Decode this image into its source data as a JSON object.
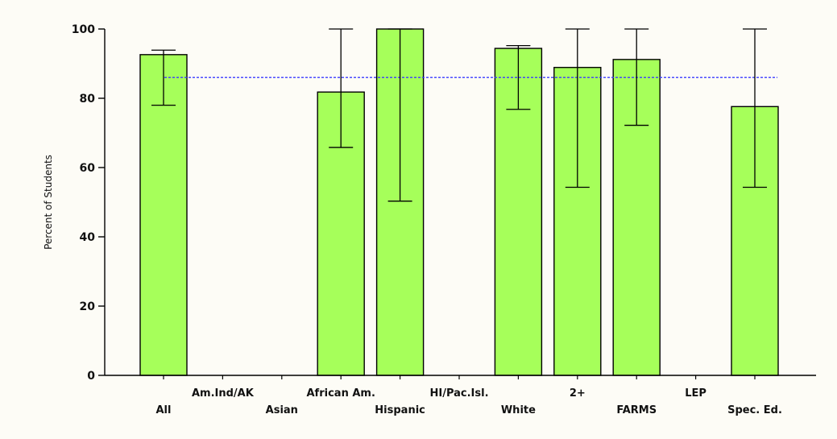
{
  "colors": {
    "background": "#fdfcf6",
    "bar_fill": "#a6ff5a",
    "bar_stroke": "#000000",
    "reference_line": "#3b3bff",
    "axis": "#000000"
  },
  "chart_data": {
    "type": "bar",
    "title": "",
    "xlabel": "",
    "ylabel": "Percent of Students",
    "ylim": [
      0,
      100
    ],
    "yticks": [
      0,
      20,
      40,
      60,
      80,
      100
    ],
    "grid": false,
    "legend": "none",
    "categories": [
      "All",
      "Am.Ind/AK",
      "Asian",
      "African Am.",
      "Hispanic",
      "HI/Pac.Isl.",
      "White",
      "2+",
      "FARMS",
      "LEP",
      "Spec. Ed."
    ],
    "values": [
      92.6,
      null,
      null,
      81.8,
      100,
      null,
      94.4,
      88.9,
      91.2,
      null,
      77.6
    ],
    "error_low": [
      78.0,
      null,
      null,
      65.8,
      50.3,
      null,
      76.8,
      54.3,
      72.2,
      null,
      54.3
    ],
    "error_high": [
      93.9,
      null,
      null,
      100,
      100,
      null,
      95.2,
      100,
      100,
      null,
      100
    ],
    "reference_line": 86.0
  }
}
